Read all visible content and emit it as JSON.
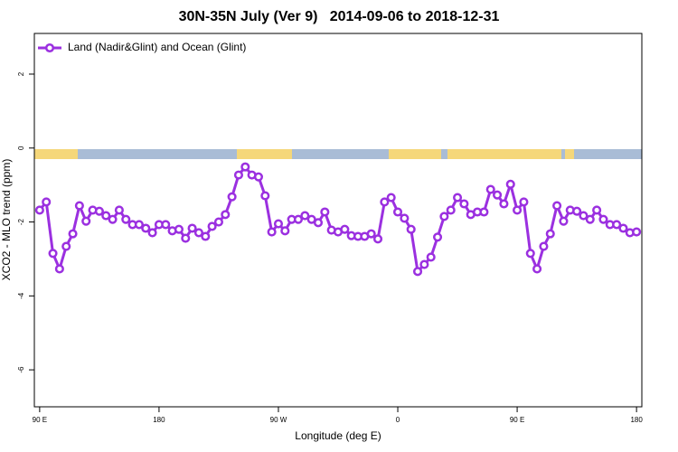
{
  "chart_data": {
    "type": "line",
    "title": "30N-35N July (Ver 9)   2014-09-06 to 2018-12-31",
    "xlabel": "Longitude (deg E)",
    "ylabel": "XCO2 - MLO trend (ppm)",
    "xlim": [
      86,
      544
    ],
    "ylim": [
      -7,
      3.1
    ],
    "xticks": [
      {
        "value": 90,
        "label": "90 E"
      },
      180,
      {
        "value": 270,
        "label": "90 W"
      },
      {
        "value": 360,
        "label": "0"
      },
      {
        "value": 450,
        "label": "90 E"
      },
      {
        "value": 540,
        "label": "180"
      }
    ],
    "yticks": [
      2,
      0,
      -2,
      -4,
      -6
    ],
    "x": [
      90,
      95,
      100,
      105,
      110,
      115,
      120,
      125,
      130,
      135,
      140,
      145,
      150,
      155,
      160,
      165,
      170,
      175,
      180,
      185,
      190,
      195,
      200,
      205,
      210,
      215,
      220,
      225,
      230,
      235,
      240,
      245,
      250,
      255,
      260,
      265,
      270,
      275,
      280,
      285,
      290,
      295,
      300,
      305,
      310,
      315,
      320,
      325,
      330,
      335,
      340,
      345,
      350,
      355,
      360,
      365,
      370,
      375,
      380,
      385,
      390,
      395,
      400,
      405,
      410,
      415,
      420,
      425,
      430,
      435,
      440,
      445,
      450,
      455,
      460,
      465,
      470,
      475,
      480,
      485,
      490,
      495,
      500,
      505,
      510,
      515,
      520,
      525,
      530,
      535,
      540
    ],
    "series": [
      {
        "name": "Land (Nadir&Glint) and Ocean (Glint)",
        "color": "#9b30e0",
        "values": [
          -1.68,
          -1.46,
          -2.85,
          -3.27,
          -2.66,
          -2.32,
          -1.56,
          -1.98,
          -1.68,
          -1.71,
          -1.83,
          -1.93,
          -1.68,
          -1.93,
          -2.07,
          -2.07,
          -2.17,
          -2.29,
          -2.07,
          -2.07,
          -2.24,
          -2.2,
          -2.44,
          -2.17,
          -2.29,
          -2.39,
          -2.12,
          -2.0,
          -1.8,
          -1.32,
          -0.73,
          -0.51,
          -0.73,
          -0.78,
          -1.29,
          -2.27,
          -2.05,
          -2.24,
          -1.93,
          -1.93,
          -1.83,
          -1.93,
          -2.02,
          -1.73,
          -2.22,
          -2.27,
          -2.2,
          -2.37,
          -2.39,
          -2.39,
          -2.32,
          -2.46,
          -1.46,
          -1.34,
          -1.73,
          -1.9,
          -2.2,
          -3.34,
          -3.15,
          -2.95,
          -2.41,
          -1.85,
          -1.68,
          -1.34,
          -1.51,
          -1.8,
          -1.73,
          -1.73,
          -1.12,
          -1.27,
          -1.51,
          -0.98,
          -1.68,
          -1.46,
          -2.85,
          -3.27,
          -2.66,
          -2.32,
          -1.56,
          -1.98,
          -1.68,
          -1.71,
          -1.83,
          -1.93,
          -1.68,
          -1.93,
          -2.07,
          -2.07,
          -2.17,
          -2.29,
          -2.27
        ]
      }
    ],
    "legend": "top-left"
  }
}
